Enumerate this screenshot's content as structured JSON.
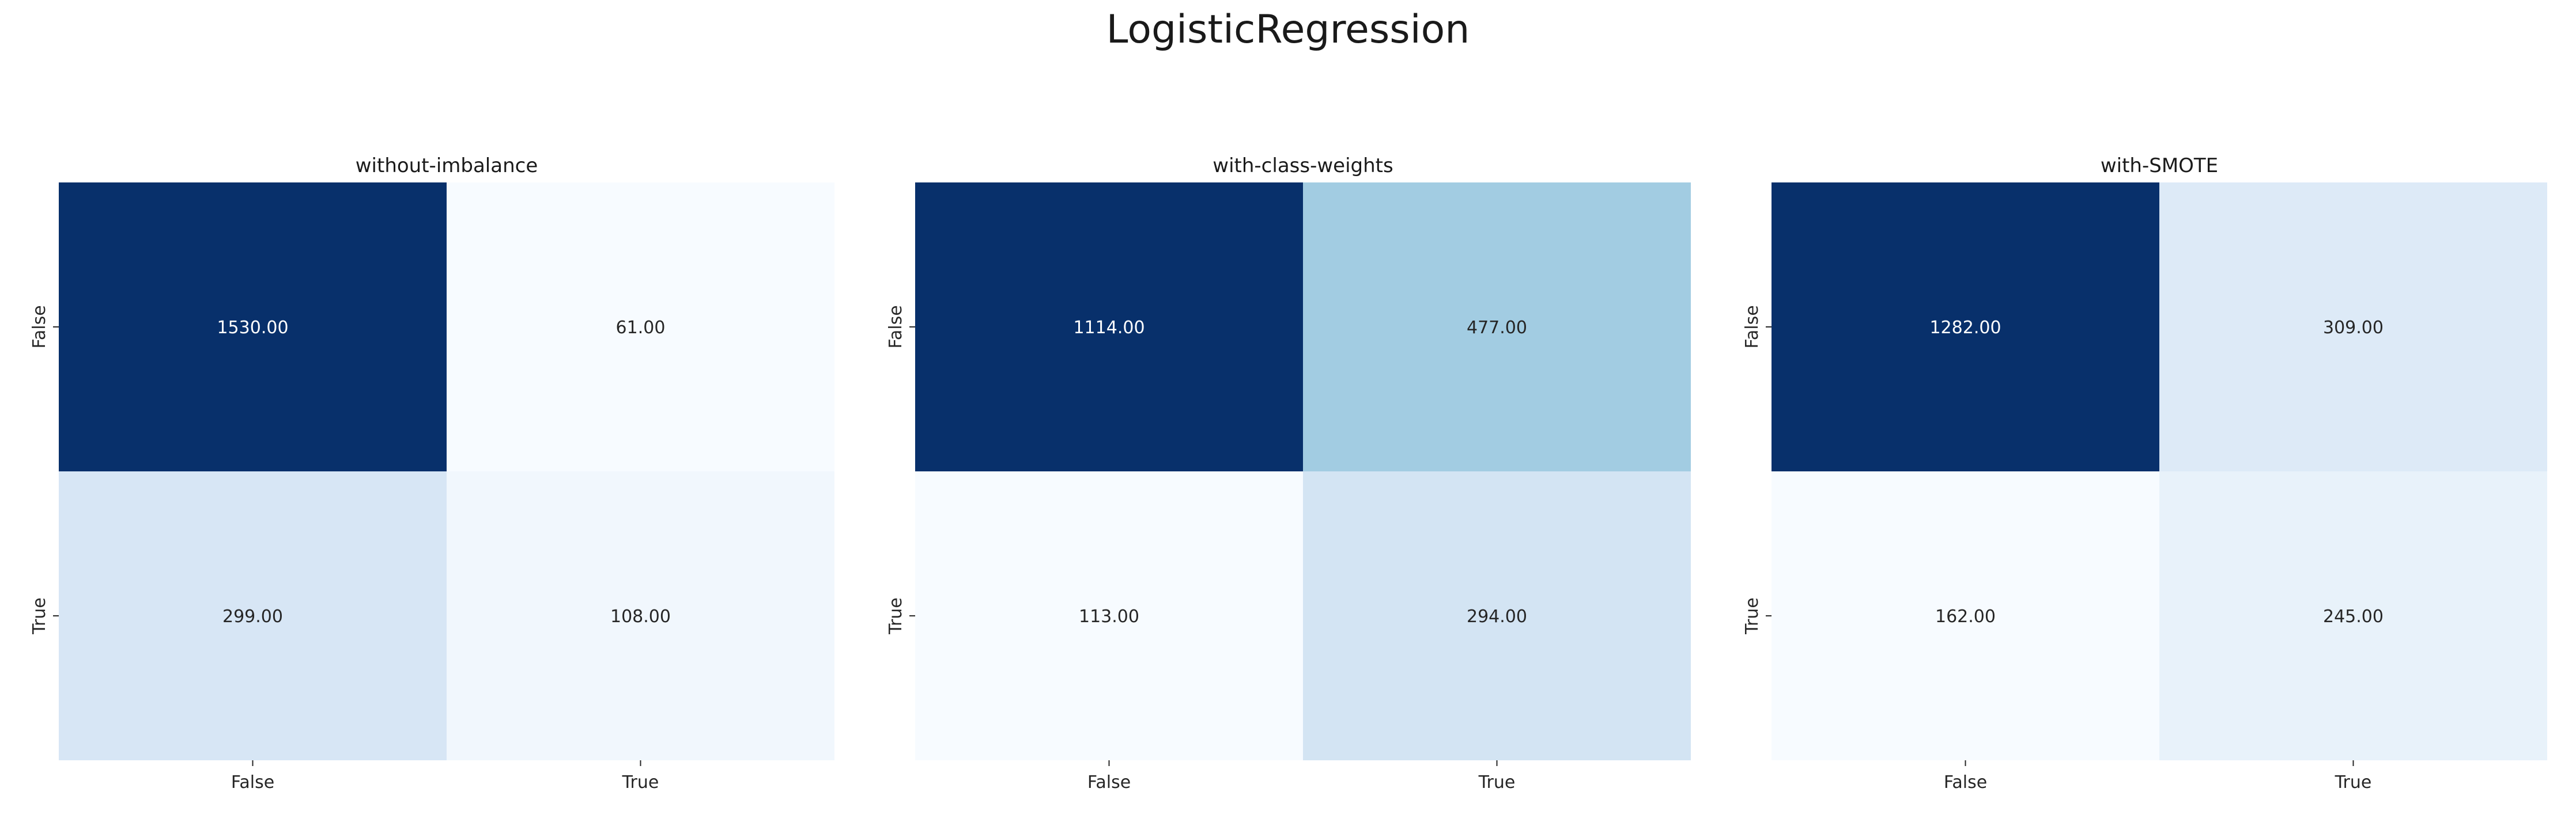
{
  "figure": {
    "title": "LogisticRegression"
  },
  "chart_data": [
    {
      "type": "heatmap",
      "title": "without-imbalance",
      "x_categories": [
        "False",
        "True"
      ],
      "y_categories": [
        "False",
        "True"
      ],
      "values": [
        [
          1530,
          61
        ],
        [
          299,
          108
        ]
      ],
      "labels": [
        [
          "1530.00",
          "61.00"
        ],
        [
          "299.00",
          "108.00"
        ]
      ],
      "colormap": "Blues",
      "colorbar": false
    },
    {
      "type": "heatmap",
      "title": "with-class-weights",
      "x_categories": [
        "False",
        "True"
      ],
      "y_categories": [
        "False",
        "True"
      ],
      "values": [
        [
          1114,
          477
        ],
        [
          113,
          294
        ]
      ],
      "labels": [
        [
          "1114.00",
          "477.00"
        ],
        [
          "113.00",
          "294.00"
        ]
      ],
      "colormap": "Blues",
      "colorbar": false
    },
    {
      "type": "heatmap",
      "title": "with-SMOTE",
      "x_categories": [
        "False",
        "True"
      ],
      "y_categories": [
        "False",
        "True"
      ],
      "values": [
        [
          1282,
          309
        ],
        [
          162,
          245
        ]
      ],
      "labels": [
        [
          "1282.00",
          "309.00"
        ],
        [
          "162.00",
          "245.00"
        ]
      ],
      "colormap": "Blues",
      "colorbar": false
    }
  ]
}
